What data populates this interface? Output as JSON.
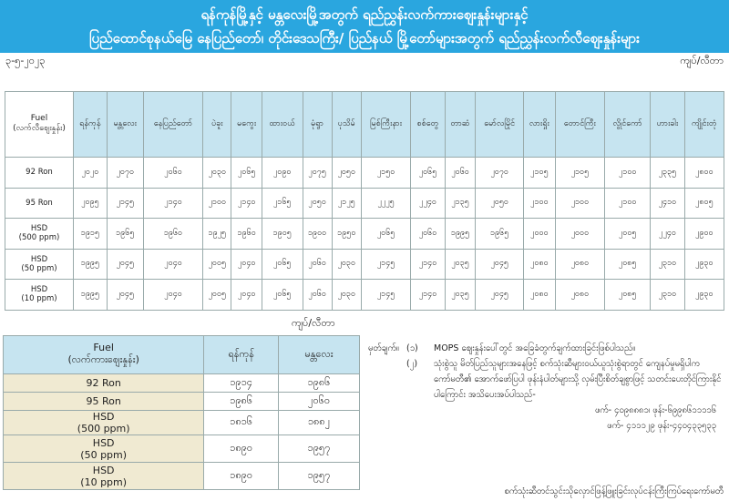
{
  "banner": {
    "line1": "ရန်ကုန်မြို့နှင့် မန္တလေးမြို့အတွက် ရည်ညွှန်းလက်ကားဈေးနှုန်းများနှင့်",
    "line2": "ပြည်ထောင်စုနယ်မြေ နေပြည်တော်၊ တိုင်းဒေသကြီး/ ပြည်နယ် မြို့တော်များအတွက် ရည်ညွှန်းလက်လီဈေးနှုန်းများ"
  },
  "date": "၃-၅-၂၀၂၃",
  "unit": "ကျပ်/လီတာ",
  "main": {
    "fuel_header": [
      "Fuel",
      "(လက်လီဈေးနှုန်း)"
    ],
    "cities": [
      "ရန်ကုန်",
      "မန္တလေး",
      "နေပြည်တော်",
      "ပဲခူး",
      "မကွေး",
      "ထားဝယ်",
      "မုံရွာ",
      "ပုသိမ်",
      "မြစ်ကြီးနား",
      "စစ်တွေ",
      "တာဆံ",
      "မော်လမြိုင်",
      "လားရှိုး",
      "တောင်ကြီး",
      "လွိုင်ကော်",
      "ဟားခါး",
      "ကျိုင်းတုံ"
    ],
    "rows": [
      {
        "fuel": [
          "92 Ron"
        ],
        "values": [
          "၂၀၂၀",
          "၂၀၇၀",
          "၂၀၆၀",
          "၂၀၃၀",
          "၂၀၆၅",
          "၂၀၉၀",
          "၂၀၇၅",
          "၂၀၅၀",
          "၂၁၅၀",
          "၂၀၆၅",
          "၂၀၆၀",
          "၂၀၇၀",
          "၂၁၀၅",
          "၂၁၀၅",
          "၂၁၀၀",
          "၂၃၃၅",
          "၂၈၀၀"
        ]
      },
      {
        "fuel": [
          "95 Ron"
        ],
        "values": [
          "၂၀၉၅",
          "၂၁၄၅",
          "၂၁၄၀",
          "၂၁၀၀",
          "၂၁၄၀",
          "၂၁၆၅",
          "၂၀၅၀",
          "၂၁၂၅",
          "၂၂၂၅",
          "၂၂၄၀",
          "၂၁၃၅",
          "၂၀၅၀",
          "၂၁၀၀",
          "၂၁၀၀",
          "၂၁၀၀",
          "၂၄၁၀",
          "၂၈၀၅"
        ]
      },
      {
        "fuel": [
          "HSD",
          "(500 ppm)"
        ],
        "values": [
          "၁၉၁၅",
          "၁၉၆၅",
          "၁၉၆၀",
          "၁၉၂၅",
          "၁၉၆၀",
          "၁၉၀၅",
          "၁၉၀၀",
          "၁၉၅၀",
          "၂၀၆၅",
          "၂၀၆၀",
          "၁၉၉၅",
          "၁၉၆၅",
          "၂၀၀၀",
          "၂၀၀၀",
          "၂၀၀၅",
          "၂၂၄၀",
          "၂၉၀၀"
        ]
      },
      {
        "fuel": [
          "HSD",
          "(50 ppm)"
        ],
        "values": [
          "၁၉၉၅",
          "၂၀၄၅",
          "၂၀၄၀",
          "၂၀၀၅",
          "၂၀၄၀",
          "၂၀၆၅",
          "၂၀၆၀",
          "၂၀၃၀",
          "၂၁၄၅",
          "၂၁၄၀",
          "၂၀၃၅",
          "၂၀၄၅",
          "၂၀၈၀",
          "၂၀၈၀",
          "၂၀၈၅",
          "၂၃၁၀",
          "၂၉၃၀"
        ]
      },
      {
        "fuel": [
          "HSD",
          "(10 ppm)"
        ],
        "values": [
          "၁၉၉၅",
          "၂၀၄၅",
          "၂၀၄၀",
          "၂၀၀၅",
          "၂၀၄၀",
          "၂၀၆၅",
          "၂၀၆၀",
          "၂၀၃၀",
          "၂၁၄၅",
          "၂၁၄၀",
          "၂၀၃၅",
          "၂၀၄၅",
          "၂၀၈၀",
          "၂၀၈၀",
          "၂၀၈၅",
          "၂၃၁၀",
          "၂၉၃၀"
        ]
      }
    ]
  },
  "wholesale": {
    "fuel_header": [
      "Fuel",
      "(လက်ကားဈေးနှုန်း)"
    ],
    "cities": [
      "ရန်ကုန်",
      "မန္တလေး"
    ],
    "rows": [
      {
        "fuel": [
          "92 Ron"
        ],
        "values": [
          "၁၉၁၄",
          "၁၉၈၆"
        ]
      },
      {
        "fuel": [
          "95 Ron"
        ],
        "values": [
          "၁၉၈၆",
          "၂၀၆၀"
        ]
      },
      {
        "fuel": [
          "HSD",
          "(500 ppm)"
        ],
        "values": [
          "၁၈၁၆",
          "၁၈၈၂"
        ]
      },
      {
        "fuel": [
          "HSD",
          "(50 ppm)"
        ],
        "values": [
          "၁၈၉၀",
          "၁၉၅၇"
        ]
      },
      {
        "fuel": [
          "HSD",
          "(10 ppm)"
        ],
        "values": [
          "၁၈၉၀",
          "၁၉၅၇"
        ]
      }
    ]
  },
  "notes": {
    "label": "မှတ်ချက်။",
    "items": [
      {
        "num": "(၁)",
        "text": "MOPS ဈေးနှုန်းပေါ်တွင် အခြေခံတွက်ချက်ထားခြင်းဖြစ်ပါသည်။"
      },
      {
        "num": "(၂)",
        "text": "သုံးစွဲသူ မိတ်ပြည်သူများအနေဖြင့် စက်သုံးဆီများဝယ်ယူသုံးစွဲရာတွင် ကျေနပ်မှုမရှိပါက ကော်မတီ၏ အောက်ဖော်ပြပါ ဖုန်းနံပါတ်များသို့ လှမ်းပြီးစိတ်ချစွာဖြင့် သတင်းပေးတိုင်ကြားနိုင်ပါကြောင်း အသိပေးအပ်ပါသည်-"
      }
    ],
    "phones": [
      "ဖက်- ၄၀၉၈၈၈၁၊ ဖုန်း-၆၉၉၈၆၁၁၁၁၆",
      "ဖက်- ၄၁၁၁၂၉ ဖုန်း-၄၄၀၄၃၃၅၃၃"
    ],
    "signature": "စက်သုံးဆီတင်သွင်းသိုလှောင်ဖြန့်ဖြူးခြင်းလုပ်ငန်းကြီးကြပ်ရေးကော်မတီ"
  },
  "colors": {
    "banner": "#2aa6df",
    "header_cell": "#c6e4f0",
    "fuel_cell": "#f0ead2"
  }
}
